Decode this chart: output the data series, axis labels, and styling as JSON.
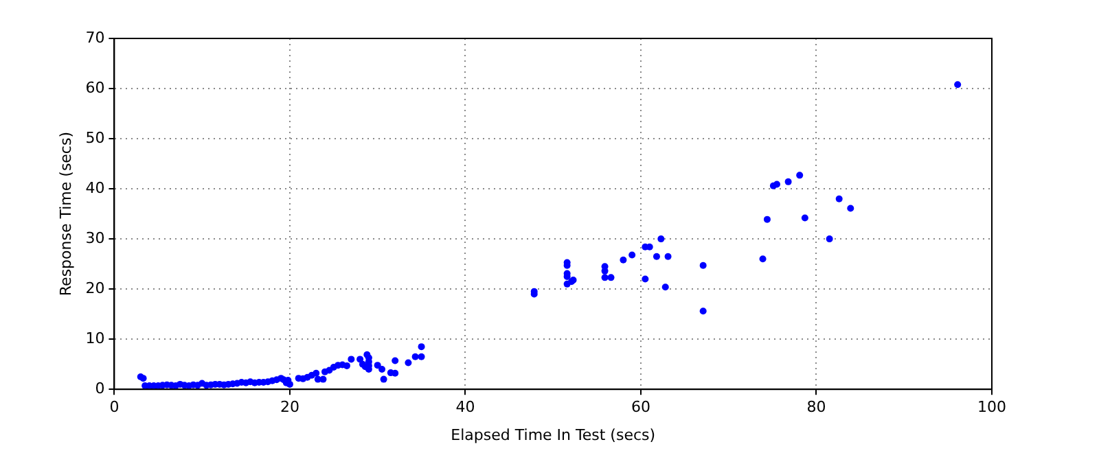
{
  "chart_data": {
    "type": "scatter",
    "xlabel": "Elapsed Time In Test (secs)",
    "ylabel": "Response Time (secs)",
    "xlim": [
      0,
      100
    ],
    "xticks": [
      0,
      20,
      40,
      60,
      80,
      100
    ],
    "ylim": [
      0,
      70
    ],
    "yticks": [
      0,
      10,
      20,
      30,
      40,
      50,
      60,
      70
    ],
    "grid": true,
    "marker": "circle",
    "legend": false,
    "series": [
      {
        "color": "#0000ff",
        "x": [
          3,
          3.3,
          3.5,
          4,
          4.5,
          5,
          5.5,
          6,
          6.5,
          7,
          7.5,
          8,
          8.5,
          9,
          9.5,
          10,
          10.5,
          11,
          11.5,
          12,
          12.5,
          13,
          13.5,
          14,
          14.5,
          15,
          15.5,
          16,
          16.5,
          17,
          17.5,
          18,
          18.5,
          19,
          19.3,
          19.6,
          20,
          19.8,
          21,
          21.5,
          22,
          22.5,
          23,
          23.2,
          23.8,
          24,
          24.5,
          25,
          25.5,
          26,
          26.5,
          27,
          28,
          28.3,
          28.6,
          28.8,
          29,
          29,
          29,
          29,
          30,
          30.5,
          30.7,
          31.5,
          32,
          32,
          33.5,
          34.3,
          35,
          35,
          47.85,
          47.85,
          51.6,
          51.6,
          51.6,
          51.6,
          51.6,
          52.1,
          52.3,
          55.9,
          55.9,
          55.9,
          56.6,
          58,
          59,
          60.5,
          61,
          62.3,
          61.8,
          63.1,
          60.5,
          62.8,
          67.1,
          67.1,
          73.9,
          74.4,
          75.1,
          75.5,
          76.8,
          78.1,
          78.7,
          81.5,
          82.6,
          83.9,
          96.1
        ],
        "values": [
          2.5,
          2.2,
          0.7,
          0.7,
          0.7,
          0.7,
          0.8,
          0.9,
          0.8,
          0.7,
          1,
          0.8,
          0.7,
          0.9,
          0.8,
          1.2,
          0.8,
          0.9,
          1,
          1,
          0.9,
          1,
          1.1,
          1.2,
          1.4,
          1.3,
          1.5,
          1.3,
          1.4,
          1.4,
          1.5,
          1.7,
          1.9,
          2.2,
          1.9,
          1.3,
          1,
          1.8,
          2.2,
          2.1,
          2.4,
          2.8,
          3.2,
          2,
          2,
          3.5,
          3.8,
          4.4,
          4.8,
          4.9,
          4.7,
          6,
          6,
          5,
          4.5,
          6.9,
          6.3,
          5.5,
          4.7,
          4,
          4.8,
          4,
          2,
          3.3,
          3.2,
          5.7,
          5.3,
          6.5,
          6.5,
          8.5,
          19.5,
          19,
          25.3,
          24.7,
          23.1,
          22.5,
          21,
          21.5,
          21.8,
          24.5,
          23.6,
          22.3,
          22.3,
          25.8,
          26.8,
          28.4,
          28.4,
          30,
          26.5,
          26.5,
          22,
          20.4,
          24.7,
          15.6,
          26,
          33.9,
          40.6,
          40.9,
          41.4,
          42.7,
          34.2,
          30,
          38,
          36.1,
          60.8
        ]
      }
    ]
  }
}
